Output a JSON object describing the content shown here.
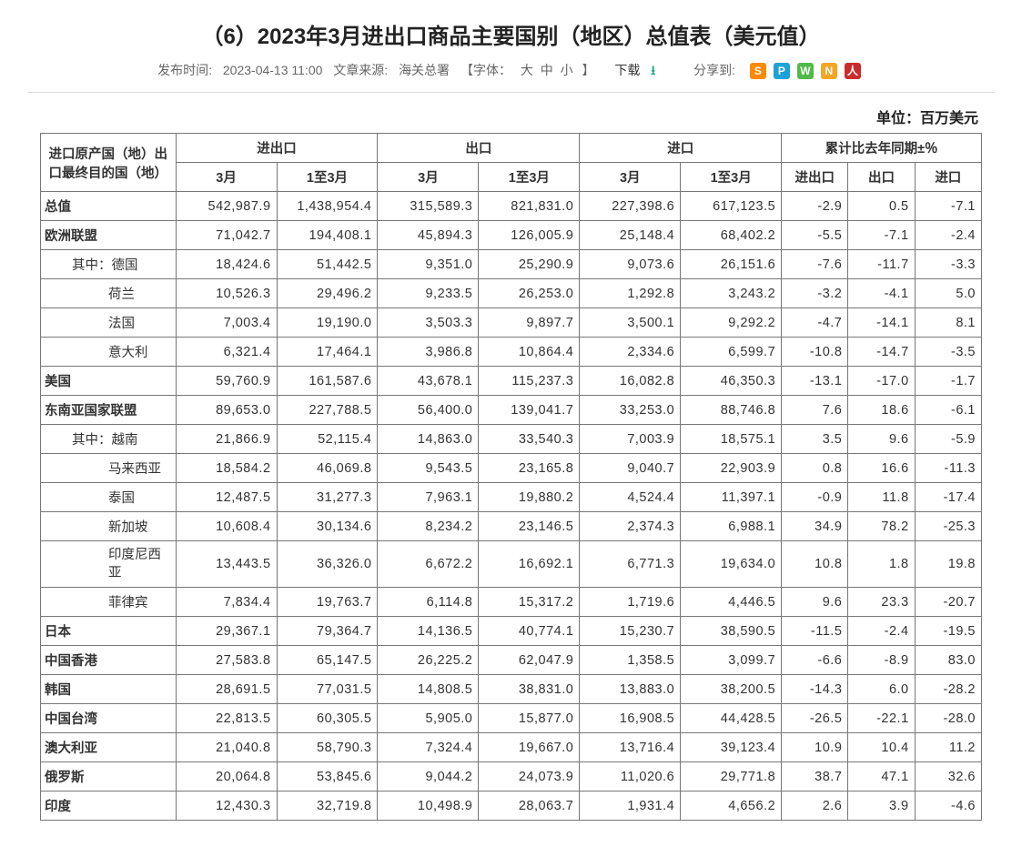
{
  "title": "（6）2023年3月进出口商品主要国别（地区）总值表（美元值）",
  "meta": {
    "pub_label": "发布时间:",
    "pub_time": "2023-04-13 11:00",
    "src_label": "文章来源:",
    "src_val": "海关总署",
    "font_label": "【字体：",
    "font_large": "大",
    "font_mid": "中",
    "font_small": "小",
    "font_close": "】",
    "download": "下载",
    "share_label": "分享到:"
  },
  "share_icons": [
    {
      "name": "weibo-icon",
      "bg": "#ff8a00",
      "glyph": "S"
    },
    {
      "name": "tencent-icon",
      "bg": "#1da1d8",
      "glyph": "P"
    },
    {
      "name": "wechat-icon",
      "bg": "#53b948",
      "glyph": "W"
    },
    {
      "name": "n-icon",
      "bg": "#f5a623",
      "glyph": "N"
    },
    {
      "name": "people-icon",
      "bg": "#cc2b2b",
      "glyph": "人"
    }
  ],
  "unit": "单位：百万美元",
  "headers": {
    "country": "进口原产国（地）出口最终目的国（地）",
    "grp_total": "进出口",
    "grp_export": "出口",
    "grp_import": "进口",
    "grp_yoy": "累计比去年同期±％",
    "sub_mar": "3月",
    "sub_ytd": "1至3月",
    "sub_total": "进出口",
    "sub_export": "出口",
    "sub_import": "进口"
  },
  "rows": [
    {
      "name": "总值",
      "indent": 0,
      "bold": true,
      "v": [
        "542,987.9",
        "1,438,954.4",
        "315,589.3",
        "821,831.0",
        "227,398.6",
        "617,123.5",
        "-2.9",
        "0.5",
        "-7.1"
      ]
    },
    {
      "name": "欧洲联盟",
      "indent": 0,
      "bold": true,
      "v": [
        "71,042.7",
        "194,408.1",
        "45,894.3",
        "126,005.9",
        "25,148.4",
        "68,402.2",
        "-5.5",
        "-7.1",
        "-2.4"
      ]
    },
    {
      "name": "其中：德国",
      "indent": 1,
      "bold": false,
      "v": [
        "18,424.6",
        "51,442.5",
        "9,351.0",
        "25,290.9",
        "9,073.6",
        "26,151.6",
        "-7.6",
        "-11.7",
        "-3.3"
      ]
    },
    {
      "name": "荷兰",
      "indent": 2,
      "bold": false,
      "v": [
        "10,526.3",
        "29,496.2",
        "9,233.5",
        "26,253.0",
        "1,292.8",
        "3,243.2",
        "-3.2",
        "-4.1",
        "5.0"
      ]
    },
    {
      "name": "法国",
      "indent": 2,
      "bold": false,
      "v": [
        "7,003.4",
        "19,190.0",
        "3,503.3",
        "9,897.7",
        "3,500.1",
        "9,292.2",
        "-4.7",
        "-14.1",
        "8.1"
      ]
    },
    {
      "name": "意大利",
      "indent": 2,
      "bold": false,
      "v": [
        "6,321.4",
        "17,464.1",
        "3,986.8",
        "10,864.4",
        "2,334.6",
        "6,599.7",
        "-10.8",
        "-14.7",
        "-3.5"
      ]
    },
    {
      "name": "美国",
      "indent": 0,
      "bold": true,
      "v": [
        "59,760.9",
        "161,587.6",
        "43,678.1",
        "115,237.3",
        "16,082.8",
        "46,350.3",
        "-13.1",
        "-17.0",
        "-1.7"
      ]
    },
    {
      "name": "东南亚国家联盟",
      "indent": 0,
      "bold": true,
      "v": [
        "89,653.0",
        "227,788.5",
        "56,400.0",
        "139,041.7",
        "33,253.0",
        "88,746.8",
        "7.6",
        "18.6",
        "-6.1"
      ]
    },
    {
      "name": "其中：越南",
      "indent": 1,
      "bold": false,
      "v": [
        "21,866.9",
        "52,115.4",
        "14,863.0",
        "33,540.3",
        "7,003.9",
        "18,575.1",
        "3.5",
        "9.6",
        "-5.9"
      ]
    },
    {
      "name": "马来西亚",
      "indent": 2,
      "bold": false,
      "v": [
        "18,584.2",
        "46,069.8",
        "9,543.5",
        "23,165.8",
        "9,040.7",
        "22,903.9",
        "0.8",
        "16.6",
        "-11.3"
      ]
    },
    {
      "name": "泰国",
      "indent": 2,
      "bold": false,
      "v": [
        "12,487.5",
        "31,277.3",
        "7,963.1",
        "19,880.2",
        "4,524.4",
        "11,397.1",
        "-0.9",
        "11.8",
        "-17.4"
      ]
    },
    {
      "name": "新加坡",
      "indent": 2,
      "bold": false,
      "v": [
        "10,608.4",
        "30,134.6",
        "8,234.2",
        "23,146.5",
        "2,374.3",
        "6,988.1",
        "34.9",
        "78.2",
        "-25.3"
      ]
    },
    {
      "name": "印度尼西亚",
      "indent": 2,
      "bold": false,
      "wrap": true,
      "v": [
        "13,443.5",
        "36,326.0",
        "6,672.2",
        "16,692.1",
        "6,771.3",
        "19,634.0",
        "10.8",
        "1.8",
        "19.8"
      ]
    },
    {
      "name": "菲律宾",
      "indent": 2,
      "bold": false,
      "v": [
        "7,834.4",
        "19,763.7",
        "6,114.8",
        "15,317.2",
        "1,719.6",
        "4,446.5",
        "9.6",
        "23.3",
        "-20.7"
      ]
    },
    {
      "name": "日本",
      "indent": 0,
      "bold": true,
      "v": [
        "29,367.1",
        "79,364.7",
        "14,136.5",
        "40,774.1",
        "15,230.7",
        "38,590.5",
        "-11.5",
        "-2.4",
        "-19.5"
      ]
    },
    {
      "name": "中国香港",
      "indent": 0,
      "bold": true,
      "v": [
        "27,583.8",
        "65,147.5",
        "26,225.2",
        "62,047.9",
        "1,358.5",
        "3,099.7",
        "-6.6",
        "-8.9",
        "83.0"
      ]
    },
    {
      "name": "韩国",
      "indent": 0,
      "bold": true,
      "v": [
        "28,691.5",
        "77,031.5",
        "14,808.5",
        "38,831.0",
        "13,883.0",
        "38,200.5",
        "-14.3",
        "6.0",
        "-28.2"
      ]
    },
    {
      "name": "中国台湾",
      "indent": 0,
      "bold": true,
      "v": [
        "22,813.5",
        "60,305.5",
        "5,905.0",
        "15,877.0",
        "16,908.5",
        "44,428.5",
        "-26.5",
        "-22.1",
        "-28.0"
      ]
    },
    {
      "name": "澳大利亚",
      "indent": 0,
      "bold": true,
      "v": [
        "21,040.8",
        "58,790.3",
        "7,324.4",
        "19,667.0",
        "13,716.4",
        "39,123.4",
        "10.9",
        "10.4",
        "11.2"
      ]
    },
    {
      "name": "俄罗斯",
      "indent": 0,
      "bold": true,
      "v": [
        "20,064.8",
        "53,845.6",
        "9,044.2",
        "24,073.9",
        "11,020.6",
        "29,771.8",
        "38.7",
        "47.1",
        "32.6"
      ]
    },
    {
      "name": "印度",
      "indent": 0,
      "bold": true,
      "v": [
        "12,430.3",
        "32,719.8",
        "10,498.9",
        "28,063.7",
        "1,931.4",
        "4,656.2",
        "2.6",
        "3.9",
        "-4.6"
      ]
    }
  ]
}
